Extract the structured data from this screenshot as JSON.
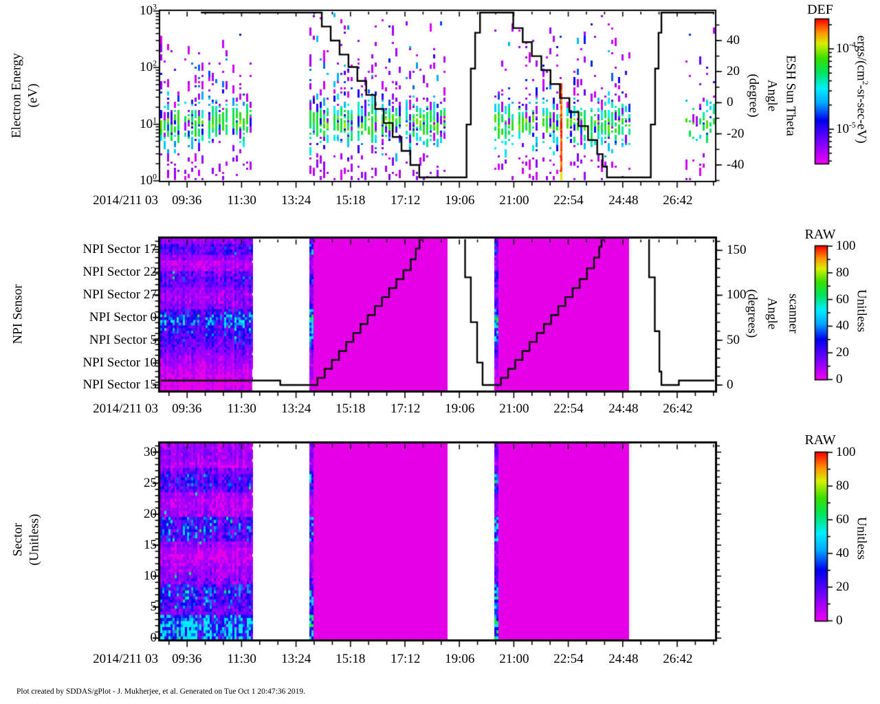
{
  "footer_note": "Plot created by SDDAS/gPlot - J. Mukherjee, et al.  Generated on Tue Oct 1 20:47:36 2019.",
  "chart_data": {
    "type": "heatmap",
    "subtype": "time-series spectrogram stack",
    "x_axis": {
      "label": "2014/211 03",
      "range_hours": [
        8.66,
        28.02
      ],
      "ticks": [
        {
          "label": "09:36",
          "t": 9.6,
          "pos": 0.048
        },
        {
          "label": "11:30",
          "t": 11.5,
          "pos": 0.147
        },
        {
          "label": "13:24",
          "t": 13.4,
          "pos": 0.245
        },
        {
          "label": "15:18",
          "t": 15.3,
          "pos": 0.343
        },
        {
          "label": "17:12",
          "t": 17.2,
          "pos": 0.442
        },
        {
          "label": "19:06",
          "t": 19.1,
          "pos": 0.54
        },
        {
          "label": "21:00",
          "t": 21.0,
          "pos": 0.638
        },
        {
          "label": "22:54",
          "t": 22.9,
          "pos": 0.736
        },
        {
          "label": "24:48",
          "t": 24.8,
          "pos": 0.835
        },
        {
          "label": "26:42",
          "t": 26.7,
          "pos": 0.933
        }
      ]
    },
    "palette_stops": [
      [
        0.0,
        "#f000f2"
      ],
      [
        0.14,
        "#8000ff"
      ],
      [
        0.3,
        "#0000ee"
      ],
      [
        0.42,
        "#00aaff"
      ],
      [
        0.52,
        "#00eeff"
      ],
      [
        0.63,
        "#00e460"
      ],
      [
        0.73,
        "#3ae000"
      ],
      [
        0.83,
        "#d8f000"
      ],
      [
        0.91,
        "#ff9000"
      ],
      [
        1.0,
        "#ff0000"
      ]
    ],
    "panels": [
      {
        "name": "electron-energy-spectrogram",
        "y_left": {
          "label_lines": [
            "Electron Energy",
            "(eV)"
          ],
          "scale": "log",
          "range_eV": [
            1,
            1000
          ],
          "ticks": [
            {
              "base": "10",
              "exp": "3",
              "pos": 0.0
            },
            {
              "base": "10",
              "exp": "2",
              "pos": 0.333
            },
            {
              "base": "10",
              "exp": "1",
              "pos": 0.667
            },
            {
              "base": "10",
              "exp": "0",
              "pos": 1.0
            }
          ]
        },
        "y_right": {
          "label_lines": [
            "ESH Sun Theta",
            "Angle",
            "(degree)"
          ],
          "range": [
            -50.2,
            59.0
          ],
          "ticks": [
            {
              "label": "40",
              "pos": 0.174
            },
            {
              "label": "20",
              "pos": 0.357
            },
            {
              "label": "0",
              "pos": 0.54
            },
            {
              "label": "-20",
              "pos": 0.723
            },
            {
              "label": "-40",
              "pos": 0.906
            }
          ]
        },
        "colorbar": {
          "title": "DEF",
          "unit": {
            "pre": "ergs/(cm",
            "sup": "2",
            "post": "-sr-sec-eV)"
          },
          "log_range": [
            -5.43,
            -3.63
          ],
          "ticks": [
            {
              "base": "10",
              "exp": "-4",
              "pos": 0.205
            },
            {
              "base": "10",
              "exp": "-5",
              "pos": 0.762
            }
          ]
        },
        "data_blocks": [
          {
            "t0": 8.66,
            "t1": 11.88,
            "density": 1.0
          },
          {
            "t0": 13.87,
            "t1": 18.69,
            "density": 1.0
          },
          {
            "t0": 20.32,
            "t1": 25.02,
            "density": 0.85,
            "hot_column_t": 22.62
          },
          {
            "t0": 27.0,
            "t1": 27.98,
            "density": 0.35
          }
        ],
        "overlay_series": {
          "name": "ESH Sun Theta Angle",
          "units": "degree",
          "style": "stepped-black-line",
          "points": [
            [
              10.08,
              58
            ],
            [
              13.99,
              58
            ],
            [
              14.3,
              49
            ],
            [
              14.61,
              40
            ],
            [
              14.92,
              31
            ],
            [
              15.23,
              23
            ],
            [
              15.54,
              14
            ],
            [
              15.85,
              5
            ],
            [
              16.16,
              -4
            ],
            [
              16.46,
              -13
            ],
            [
              16.77,
              -22
            ],
            [
              17.08,
              -31
            ],
            [
              17.39,
              -40
            ],
            [
              17.7,
              -48
            ],
            [
              19.22,
              -48
            ],
            [
              19.35,
              -14
            ],
            [
              19.5,
              22
            ],
            [
              19.65,
              45
            ],
            [
              19.82,
              58
            ],
            [
              20.66,
              58
            ],
            [
              20.98,
              48
            ],
            [
              21.31,
              39
            ],
            [
              21.63,
              30
            ],
            [
              21.96,
              21
            ],
            [
              22.28,
              12
            ],
            [
              22.61,
              3
            ],
            [
              22.94,
              -6
            ],
            [
              23.26,
              -15
            ],
            [
              23.59,
              -24
            ],
            [
              23.91,
              -33
            ],
            [
              24.1,
              -41
            ],
            [
              24.25,
              -48
            ],
            [
              25.62,
              -48
            ],
            [
              25.78,
              -14
            ],
            [
              25.93,
              22
            ],
            [
              26.05,
              45
            ],
            [
              26.15,
              58
            ],
            [
              28.02,
              58
            ]
          ]
        }
      },
      {
        "name": "npi-sensor-spectrogram",
        "rows": 28,
        "y_left": {
          "label_lines": [
            "NPI Sensor"
          ],
          "ticks": [
            {
              "label": "NPI Sector 17",
              "pos": 0.072
            },
            {
              "label": "NPI Sector 22",
              "pos": 0.222
            },
            {
              "label": "NPI Sector 27",
              "pos": 0.371
            },
            {
              "label": "NPI Sector 0",
              "pos": 0.52
            },
            {
              "label": "NPI Sector 5",
              "pos": 0.67
            },
            {
              "label": "NPI Sector 10",
              "pos": 0.819
            },
            {
              "label": "NPI Sector 15",
              "pos": 0.964
            }
          ]
        },
        "y_right": {
          "label_lines": [
            "scanner",
            "Angle",
            "(degrees)"
          ],
          "range": [
            -6.1,
            163.2
          ],
          "ticks": [
            {
              "label": "150",
              "pos": 0.078
            },
            {
              "label": "100",
              "pos": 0.373
            },
            {
              "label": "50",
              "pos": 0.669
            },
            {
              "label": "0",
              "pos": 0.964
            }
          ]
        },
        "colorbar": {
          "title": "RAW",
          "unit": {
            "pre": "Unitless",
            "sup": "",
            "post": ""
          },
          "range": [
            0,
            100
          ],
          "ticks": [
            {
              "label": "100",
              "pos": 0.0
            },
            {
              "label": "80",
              "pos": 0.2
            },
            {
              "label": "60",
              "pos": 0.4
            },
            {
              "label": "40",
              "pos": 0.6
            },
            {
              "label": "20",
              "pos": 0.8
            },
            {
              "label": "0",
              "pos": 1.0
            }
          ]
        },
        "row_band_strength": [
          0.12,
          0.24,
          0.26,
          0.12,
          0.07,
          0.1,
          0.2,
          0.24,
          0.2,
          0.13,
          0.1,
          0.13,
          0.16,
          0.3,
          0.46,
          0.46,
          0.36,
          0.3,
          0.26,
          0.22,
          0.18,
          0.14,
          0.1,
          0.08,
          0.06,
          0.05,
          0.04,
          0.04
        ],
        "data_blocks": [
          {
            "t0": 8.66,
            "t1": 11.88,
            "style": "textured"
          },
          {
            "t0": 13.87,
            "t1": 18.69,
            "style": "solid",
            "edge_t1": 14.02
          },
          {
            "t0": 20.32,
            "t1": 25.02,
            "style": "solid",
            "edge_t1": 20.46
          }
        ],
        "overlay_series": {
          "name": "scanner Angle",
          "units": "degrees",
          "style": "stepped-black-line",
          "points": [
            [
              8.66,
              5
            ],
            [
              12.79,
              5
            ],
            [
              12.85,
              0
            ],
            [
              13.99,
              0
            ],
            [
              14.15,
              8
            ],
            [
              14.4,
              18
            ],
            [
              14.65,
              28
            ],
            [
              14.9,
              38
            ],
            [
              15.15,
              48
            ],
            [
              15.4,
              58
            ],
            [
              15.65,
              68
            ],
            [
              15.9,
              78
            ],
            [
              16.15,
              88
            ],
            [
              16.4,
              98
            ],
            [
              16.65,
              108
            ],
            [
              16.9,
              118
            ],
            [
              17.15,
              128
            ],
            [
              17.4,
              140
            ],
            [
              17.58,
              152
            ],
            [
              17.71,
              162
            ],
            [
              17.78,
              168
            ],
            [
              19.12,
              168
            ],
            [
              19.3,
              120
            ],
            [
              19.5,
              70
            ],
            [
              19.72,
              25
            ],
            [
              19.91,
              0
            ],
            [
              20.39,
              0
            ],
            [
              20.55,
              8
            ],
            [
              20.8,
              18
            ],
            [
              21.05,
              28
            ],
            [
              21.3,
              38
            ],
            [
              21.55,
              48
            ],
            [
              21.8,
              58
            ],
            [
              22.05,
              68
            ],
            [
              22.3,
              78
            ],
            [
              22.55,
              88
            ],
            [
              22.8,
              98
            ],
            [
              23.05,
              108
            ],
            [
              23.3,
              118
            ],
            [
              23.55,
              130
            ],
            [
              23.8,
              142
            ],
            [
              23.98,
              154
            ],
            [
              24.06,
              162
            ],
            [
              24.12,
              168
            ],
            [
              25.56,
              168
            ],
            [
              25.72,
              120
            ],
            [
              25.92,
              60
            ],
            [
              26.08,
              15
            ],
            [
              26.15,
              0
            ],
            [
              26.7,
              0
            ],
            [
              26.76,
              5
            ],
            [
              28.02,
              5
            ]
          ]
        }
      },
      {
        "name": "sector-spectrogram",
        "rows": 32,
        "y_left": {
          "label_lines": [
            "Sector",
            "(Unitless)"
          ],
          "range": [
            0,
            31
          ],
          "ticks": [
            {
              "label": "30",
              "pos": 0.044
            },
            {
              "label": "25",
              "pos": 0.203
            },
            {
              "label": "20",
              "pos": 0.361
            },
            {
              "label": "15",
              "pos": 0.519
            },
            {
              "label": "10",
              "pos": 0.677
            },
            {
              "label": "5",
              "pos": 0.835
            },
            {
              "label": "0",
              "pos": 0.994
            }
          ]
        },
        "colorbar": {
          "title": "RAW",
          "unit": {
            "pre": "Unitless",
            "sup": "",
            "post": ""
          },
          "range": [
            0,
            100
          ],
          "ticks": [
            {
              "label": "100",
              "pos": 0.0
            },
            {
              "label": "80",
              "pos": 0.2
            },
            {
              "label": "60",
              "pos": 0.4
            },
            {
              "label": "40",
              "pos": 0.6
            },
            {
              "label": "20",
              "pos": 0.8
            },
            {
              "label": "0",
              "pos": 1.0
            }
          ]
        },
        "row_band_strength": [
          0.1,
          0.12,
          0.1,
          0.08,
          0.16,
          0.26,
          0.28,
          0.22,
          0.1,
          0.08,
          0.08,
          0.1,
          0.3,
          0.32,
          0.3,
          0.28,
          0.12,
          0.08,
          0.06,
          0.08,
          0.1,
          0.13,
          0.16,
          0.3,
          0.36,
          0.33,
          0.28,
          0.2,
          0.46,
          0.55,
          0.6,
          0.52
        ],
        "data_blocks": [
          {
            "t0": 8.66,
            "t1": 11.88,
            "style": "textured"
          },
          {
            "t0": 13.87,
            "t1": 18.69,
            "style": "solid",
            "edge_t1": 14.02
          },
          {
            "t0": 20.32,
            "t1": 25.02,
            "style": "solid",
            "edge_t1": 20.46
          }
        ]
      }
    ]
  }
}
